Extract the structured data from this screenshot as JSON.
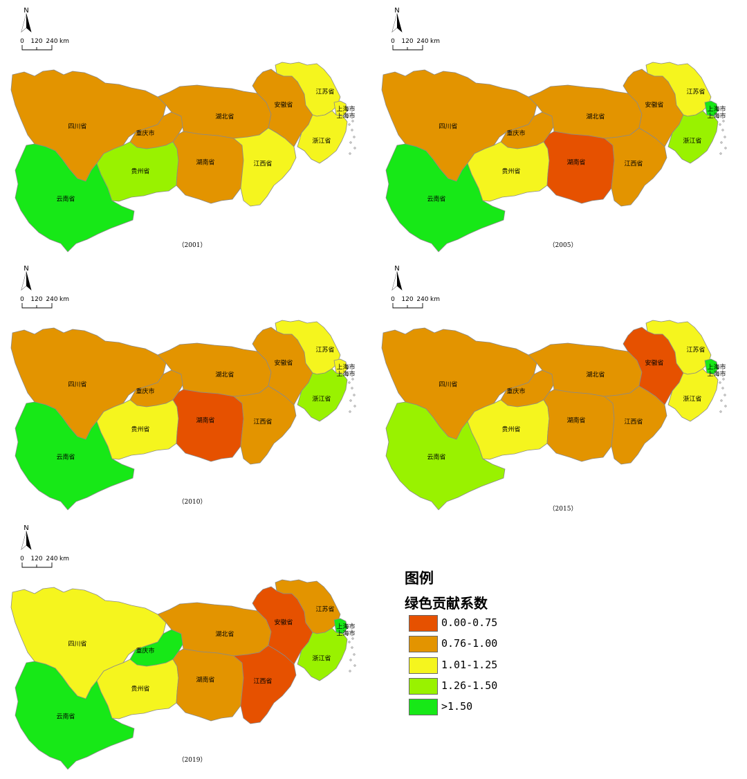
{
  "compass_label": "N",
  "scale_bar": {
    "ticks": [
      "0",
      "120",
      "240"
    ],
    "unit": "km"
  },
  "province_names": {
    "sichuan": "四川省",
    "chongqing": "重庆市",
    "yunnan": "云南省",
    "guizhou": "贵州省",
    "hubei": "湖北省",
    "hunan": "湖南省",
    "jiangxi": "江西省",
    "anhui": "安徽省",
    "jiangsu": "江苏省",
    "zhejiang": "浙江省",
    "shanghai": "上海市"
  },
  "colors": {
    "0": "#e65100",
    "1": "#e39400",
    "2": "#f5f51e",
    "3": "#99f200",
    "4": "#17e817"
  },
  "legend": {
    "title": "图例",
    "subtitle": "绿色贡献系数",
    "items": [
      {
        "label": "0.00-0.75",
        "class": 0
      },
      {
        "label": "0.76-1.00",
        "class": 1
      },
      {
        "label": "1.01-1.25",
        "class": 2
      },
      {
        "label": "1.26-1.50",
        "class": 3
      },
      {
        "label": ">1.50",
        "class": 4
      }
    ]
  },
  "maps": [
    {
      "year_label": "（2001）",
      "classes": {
        "sichuan": 1,
        "chongqing": 1,
        "yunnan": 4,
        "guizhou": 3,
        "hubei": 1,
        "hunan": 1,
        "jiangxi": 2,
        "anhui": 1,
        "jiangsu": 2,
        "zhejiang": 2,
        "shanghai": 2
      }
    },
    {
      "year_label": "（2005）",
      "classes": {
        "sichuan": 1,
        "chongqing": 1,
        "yunnan": 4,
        "guizhou": 2,
        "hubei": 1,
        "hunan": 0,
        "jiangxi": 1,
        "anhui": 1,
        "jiangsu": 2,
        "zhejiang": 3,
        "shanghai": 4
      }
    },
    {
      "year_label": "（2010）",
      "classes": {
        "sichuan": 1,
        "chongqing": 1,
        "yunnan": 4,
        "guizhou": 2,
        "hubei": 1,
        "hunan": 0,
        "jiangxi": 1,
        "anhui": 1,
        "jiangsu": 2,
        "zhejiang": 3,
        "shanghai": 2
      }
    },
    {
      "year_label": "（2015）",
      "classes": {
        "sichuan": 1,
        "chongqing": 1,
        "yunnan": 3,
        "guizhou": 2,
        "hubei": 1,
        "hunan": 1,
        "jiangxi": 1,
        "anhui": 0,
        "jiangsu": 2,
        "zhejiang": 2,
        "shanghai": 4
      }
    },
    {
      "year_label": "（2019）",
      "classes": {
        "sichuan": 2,
        "chongqing": 4,
        "yunnan": 4,
        "guizhou": 2,
        "hubei": 1,
        "hunan": 1,
        "jiangxi": 0,
        "anhui": 0,
        "jiangsu": 1,
        "zhejiang": 3,
        "shanghai": 4
      }
    }
  ]
}
